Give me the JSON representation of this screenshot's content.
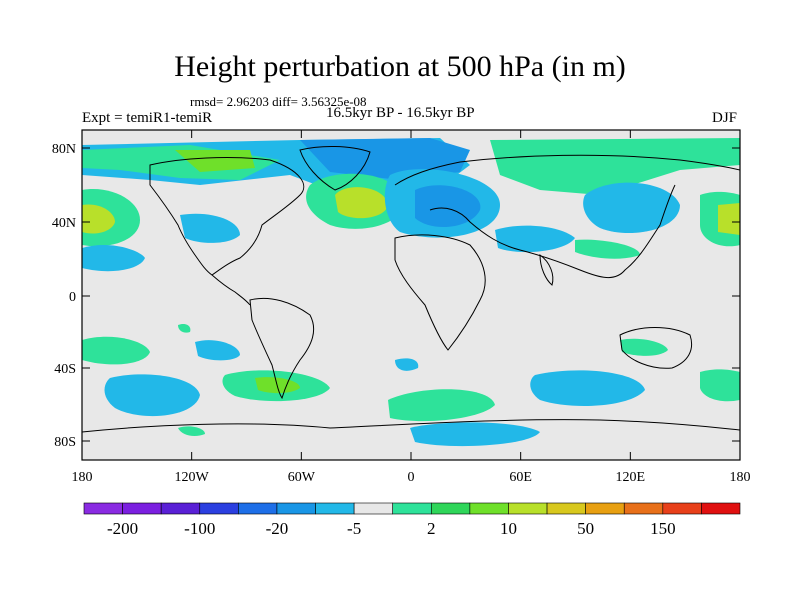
{
  "title": "Height perturbation at 500 hPa (in m)",
  "stats": "rmsd= 2.96203 diff= 3.56325e-08",
  "experiment": "Expt = temiR1-temiR",
  "period": "16.5kyr BP - 16.5kyr BP",
  "season": "DJF",
  "y_ticks": [
    "80N",
    "40N",
    "0",
    "40S",
    "80S"
  ],
  "x_ticks": [
    "180",
    "120W",
    "60W",
    "0",
    "60E",
    "120E",
    "180"
  ],
  "colorbar": {
    "colors": [
      "#8a2be2",
      "#7b1fe0",
      "#5a20d6",
      "#2b3fe0",
      "#1e6fe8",
      "#1996e6",
      "#22b8e8",
      "#e8e8e8",
      "#2ee29a",
      "#2fd65a",
      "#6fe02a",
      "#b8e02a",
      "#d8c81e",
      "#e8a012",
      "#e8701a",
      "#e8401a",
      "#e01010"
    ],
    "labels": [
      "-200",
      "-100",
      "-20",
      "-5",
      "2",
      "10",
      "50",
      "150"
    ]
  },
  "colors": {
    "background": "#e8e8e8",
    "frame": "#000000"
  }
}
